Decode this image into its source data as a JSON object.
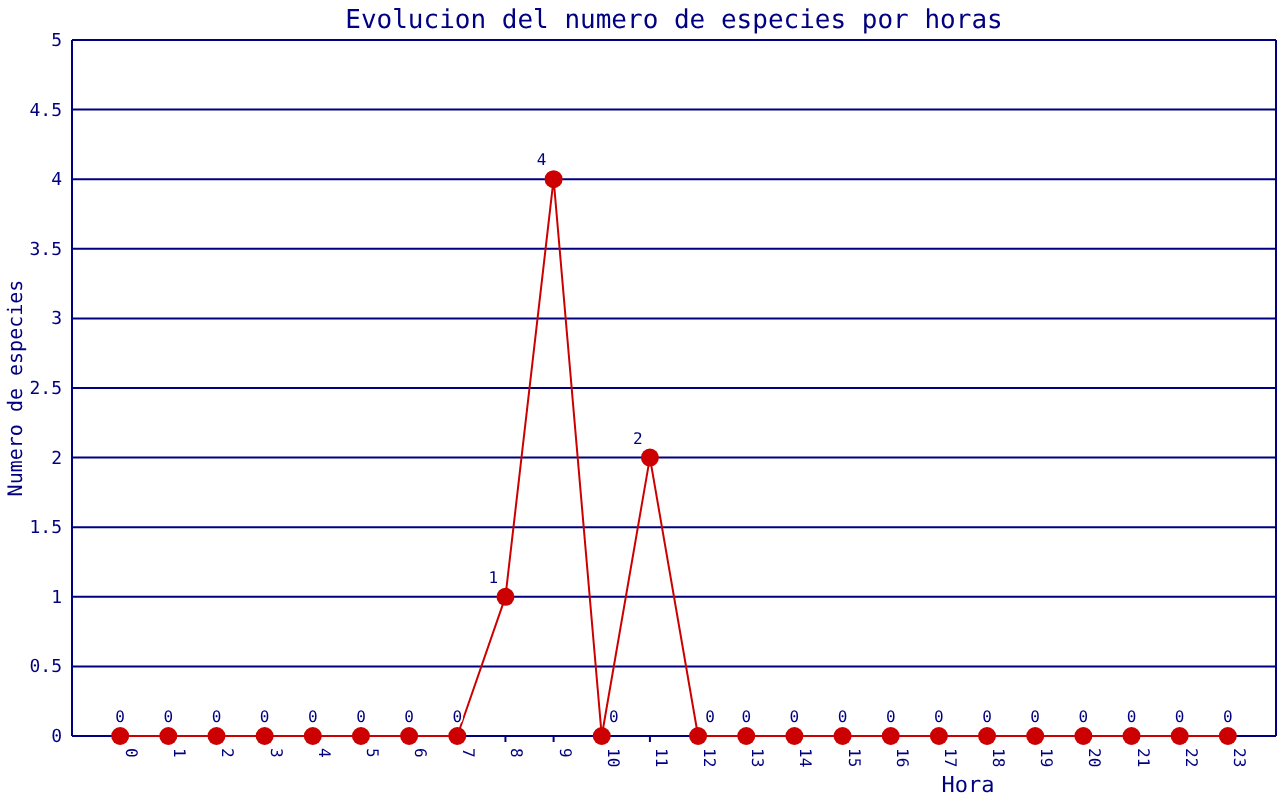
{
  "chart_data": {
    "type": "line",
    "title": "Evolucion del numero de especies por horas",
    "xlabel": "Hora",
    "ylabel": "Numero de especies",
    "categories": [
      "0",
      "1",
      "2",
      "3",
      "4",
      "5",
      "6",
      "7",
      "8",
      "9",
      "10",
      "11",
      "12",
      "13",
      "14",
      "15",
      "16",
      "17",
      "18",
      "19",
      "20",
      "21",
      "22",
      "23"
    ],
    "series": [
      {
        "color": "#cc0000",
        "values": [
          0,
          0,
          0,
          0,
          0,
          0,
          0,
          0,
          1,
          4,
          0,
          2,
          0,
          0,
          0,
          0,
          0,
          0,
          0,
          0,
          0,
          0,
          0,
          0
        ]
      }
    ],
    "ylim": [
      0,
      5
    ],
    "yticks": [
      0,
      0.5,
      1,
      1.5,
      2,
      2.5,
      3,
      3.5,
      4,
      4.5,
      5
    ],
    "grid": "y",
    "marker": "circle",
    "data_labels": true
  }
}
